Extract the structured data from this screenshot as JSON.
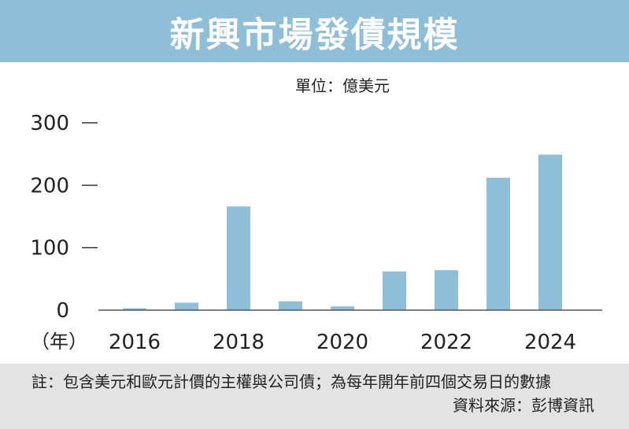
{
  "chart_data": {
    "type": "bar",
    "title": "新興市場發債規模",
    "unit_label": "單位：億美元",
    "year_label": "（年）",
    "categories": [
      "2016",
      "2017",
      "2018",
      "2019",
      "2020",
      "2021",
      "2022",
      "2023",
      "2024"
    ],
    "tick_labels": [
      "2016",
      "",
      "2018",
      "",
      "2020",
      "",
      "2022",
      "",
      "2024"
    ],
    "values": [
      3,
      12,
      166,
      14,
      6,
      62,
      64,
      212,
      249
    ],
    "ylim": [
      0,
      300
    ],
    "yticks": [
      "300",
      "200",
      "100",
      "0"
    ],
    "ytick_values": [
      300,
      200,
      100,
      0
    ],
    "grid": false,
    "colors": {
      "bar": "#8fbfd8",
      "header": "#8fbfd8",
      "footer": "#e3e3e3"
    }
  },
  "footnote": "註：包含美元和歐元計價的主權與公司債；為每年開年前四個交易日的數據",
  "source": "資料來源：彭博資訊"
}
